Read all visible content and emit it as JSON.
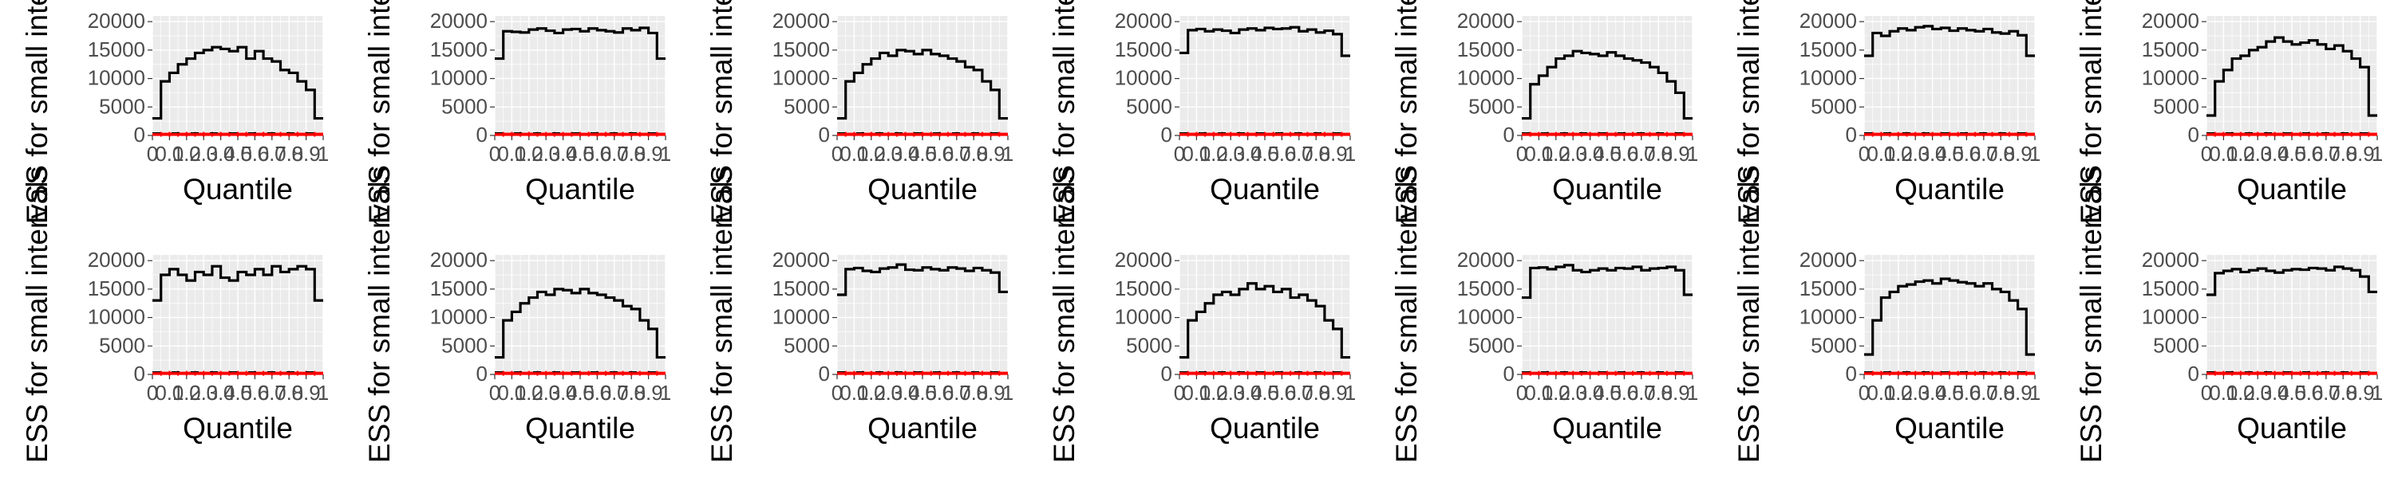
{
  "chart_data": {
    "type": "line",
    "layout": "grid of 14 small panels (2 rows x 7 columns)",
    "colors": {
      "ess_line": "#000000",
      "baseline": "#ff0000",
      "panel_bg": "#ebebeb",
      "grid": "#ffffff"
    },
    "y_axis": {
      "label": "ESS for small intervals",
      "ticks": [
        0,
        5000,
        10000,
        15000,
        20000
      ],
      "ylim": [
        0,
        21000
      ]
    },
    "x_axis": {
      "label": "Quantile",
      "ticks": [
        0,
        0.1,
        0.2,
        0.3,
        0.4,
        0.5,
        0.6,
        0.7,
        0.8,
        0.9,
        1
      ],
      "tick_labels": [
        "0",
        "0.1",
        "0.2",
        "0.3",
        "0.4",
        "0.5",
        "0.6",
        "0.7",
        "0.8",
        "0.9",
        "1"
      ],
      "xlim": [
        0,
        1
      ]
    },
    "bins": 20,
    "panels": [
      {
        "ess": [
          3000,
          9500,
          11000,
          12500,
          13500,
          14500,
          15000,
          15500,
          15200,
          14800,
          15500,
          13500,
          14800,
          13500,
          13000,
          11500,
          11000,
          9500,
          8000,
          3000
        ],
        "baseline": 200
      },
      {
        "ess": [
          13500,
          18300,
          18200,
          18100,
          18600,
          18800,
          18400,
          18000,
          18600,
          18700,
          18300,
          18800,
          18500,
          18300,
          18100,
          18800,
          18500,
          18900,
          18000,
          13500
        ],
        "baseline": 200
      },
      {
        "ess": [
          3000,
          9500,
          11000,
          12500,
          13500,
          14500,
          14000,
          15000,
          14800,
          14300,
          15000,
          14300,
          14000,
          13500,
          13000,
          12000,
          11500,
          9500,
          8000,
          3000
        ],
        "baseline": 200
      },
      {
        "ess": [
          14500,
          18500,
          18700,
          18300,
          18600,
          18400,
          18000,
          18600,
          18800,
          18500,
          18900,
          18700,
          18800,
          19000,
          18300,
          18600,
          18100,
          18400,
          17800,
          14000
        ],
        "baseline": 200
      },
      {
        "ess": [
          3000,
          9000,
          10500,
          12000,
          13500,
          14000,
          14800,
          14500,
          14300,
          14000,
          14600,
          14000,
          13500,
          13200,
          12800,
          12000,
          11000,
          9500,
          7500,
          3000
        ],
        "baseline": 200
      },
      {
        "ess": [
          14000,
          18000,
          17500,
          18300,
          18800,
          18500,
          19000,
          19200,
          18700,
          18900,
          18400,
          18800,
          18500,
          18300,
          18700,
          18100,
          17900,
          18300,
          17600,
          14000
        ],
        "baseline": 200
      },
      {
        "ess": [
          3500,
          9500,
          11500,
          13500,
          14000,
          15000,
          15500,
          16500,
          17200,
          16500,
          16000,
          16300,
          16700,
          16000,
          15200,
          15800,
          14800,
          13500,
          12000,
          3500
        ],
        "baseline": 200
      },
      {
        "ess": [
          13000,
          17500,
          18500,
          17500,
          16500,
          18000,
          17500,
          19000,
          17000,
          16500,
          18000,
          17500,
          18500,
          17500,
          19000,
          18000,
          18500,
          19000,
          18500,
          13000
        ],
        "baseline": 200
      },
      {
        "ess": [
          3000,
          9500,
          11000,
          12500,
          13500,
          14500,
          14000,
          15000,
          14800,
          14300,
          15000,
          14300,
          14000,
          13500,
          13000,
          12000,
          11500,
          9500,
          8000,
          3000
        ],
        "baseline": 200
      },
      {
        "ess": [
          14000,
          18500,
          18700,
          18200,
          18000,
          18600,
          18800,
          19300,
          18400,
          18300,
          18800,
          18500,
          18300,
          18800,
          18600,
          18200,
          18700,
          18300,
          17900,
          14500
        ],
        "baseline": 200
      },
      {
        "ess": [
          3000,
          9500,
          11000,
          12500,
          14000,
          14500,
          14000,
          15000,
          16000,
          15000,
          15500,
          14500,
          15000,
          13500,
          14000,
          13000,
          12000,
          9500,
          8000,
          3000
        ],
        "baseline": 200
      },
      {
        "ess": [
          13500,
          18700,
          18800,
          18500,
          18900,
          19200,
          18300,
          18000,
          18300,
          18600,
          18300,
          18700,
          18600,
          18900,
          18300,
          18600,
          18700,
          18900,
          18300,
          14000
        ],
        "baseline": 200
      },
      {
        "ess": [
          3500,
          9500,
          13500,
          14500,
          15500,
          15800,
          16300,
          16500,
          16000,
          16800,
          16500,
          16200,
          16000,
          15500,
          16000,
          15000,
          14500,
          13000,
          11500,
          3500
        ],
        "baseline": 200
      },
      {
        "ess": [
          14000,
          17800,
          18200,
          18500,
          18000,
          18300,
          18600,
          18200,
          17900,
          18300,
          18500,
          18400,
          18700,
          18600,
          18300,
          18900,
          18600,
          18300,
          17200,
          14500
        ],
        "baseline": 200
      }
    ]
  }
}
